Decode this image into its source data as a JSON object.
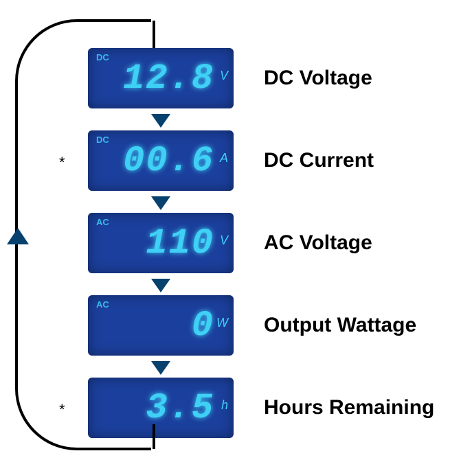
{
  "diagram": {
    "type": "flowchart",
    "loop_border_color": "#000000",
    "arrow_color": "#07416e",
    "background_color": "#ffffff",
    "label_color": "#000000",
    "label_fontsize": 30,
    "lcd_bg": "#1b3f9c",
    "lcd_text": "#3fd0f5",
    "lcd_fontsize": 52,
    "unit_fontsize": 18,
    "lcd_width": 212,
    "lcd_height": 88,
    "items": [
      {
        "value": "12.8",
        "unit": "V",
        "tag": "DC",
        "label": "DC Voltage",
        "asterisk": false
      },
      {
        "value": "00.6",
        "unit": "A",
        "tag": "DC",
        "label": "DC Current",
        "asterisk": true
      },
      {
        "value": "110",
        "unit": "V",
        "tag": "AC",
        "label": "AC Voltage",
        "asterisk": false
      },
      {
        "value": "0",
        "unit": "W",
        "tag": "AC",
        "label": "Output Wattage",
        "asterisk": false
      },
      {
        "value": "3.5",
        "unit": "h",
        "tag": "",
        "label": "Hours Remaining",
        "asterisk": true
      }
    ]
  }
}
